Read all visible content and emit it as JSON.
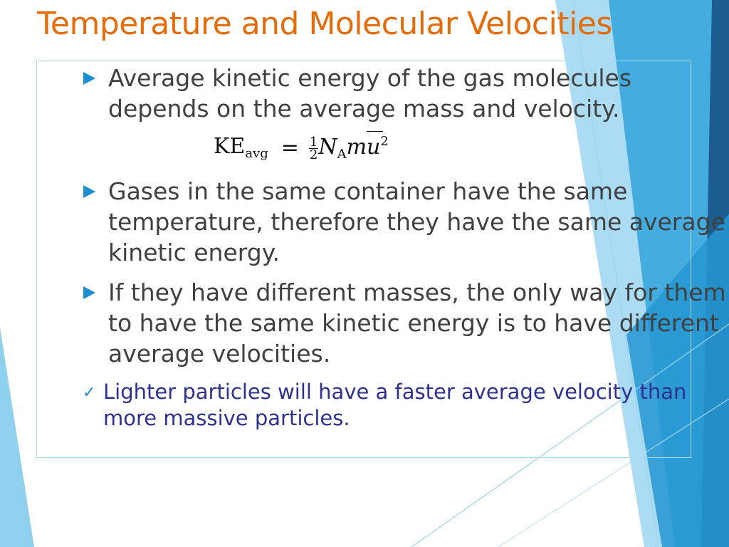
{
  "slide": {
    "title": "Temperature and Molecular Velocities",
    "title_color": "#e46c0a",
    "bullets": [
      {
        "text": "Average kinetic energy of the gas molecules depends on the average mass and velocity."
      },
      {
        "text": "Gases in the same container have the same temperature, therefore they have the same average kinetic energy."
      },
      {
        "text": "If they have different masses, the only way for them to have the same kinetic energy is to have different average velocities."
      }
    ],
    "sub_bullet": {
      "text": "Lighter particles will have a faster average velocity than more massive particles.",
      "color": "#2e3192",
      "marker": "✓"
    },
    "formula": {
      "lhs": "KE",
      "lhs_sub": "avg",
      "equals": "=",
      "numerator": "1",
      "denominator": "2",
      "var_n": "N",
      "var_n_sub": "A",
      "var_m": "m",
      "var_u": "u",
      "exponent": "2"
    },
    "text_color": "#404040",
    "accent_color": "#1a8ed1"
  }
}
